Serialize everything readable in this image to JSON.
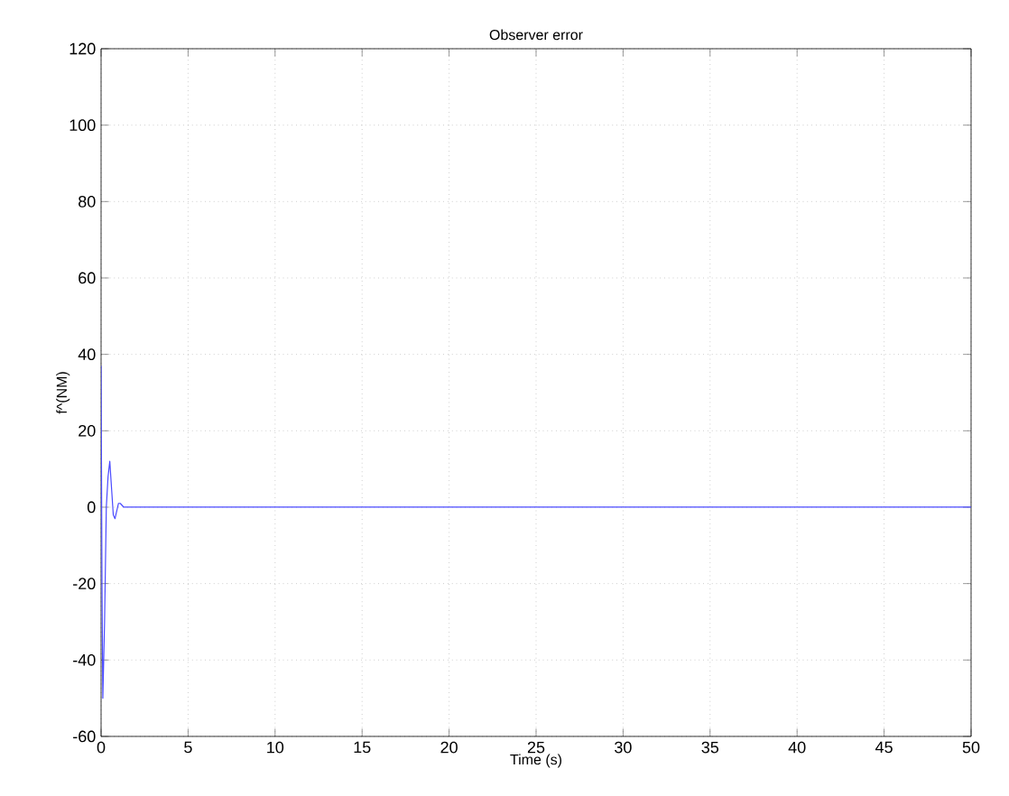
{
  "chart_data": {
    "type": "line",
    "title": "Observer error",
    "xlabel": "Time (s)",
    "ylabel": "f^(NM)",
    "x": [
      0,
      0.05,
      0.1,
      0.2,
      0.3,
      0.4,
      0.5,
      0.6,
      0.7,
      0.8,
      0.9,
      1.0,
      1.1,
      1.3,
      1.5,
      50
    ],
    "series": [
      {
        "color": "#4a4aff",
        "values": [
          37,
          -20,
          -50,
          -30,
          0,
          8,
          12,
          5,
          -2,
          -3,
          -1,
          1,
          1,
          0,
          0,
          0
        ]
      }
    ],
    "xlim": [
      0,
      50
    ],
    "ylim": [
      -60,
      120
    ],
    "xticks": [
      0,
      5,
      10,
      15,
      20,
      25,
      30,
      35,
      40,
      45,
      50
    ],
    "yticks": [
      -60,
      -40,
      -20,
      0,
      20,
      40,
      60,
      80,
      100,
      120
    ],
    "grid": true,
    "line_style": "solid",
    "marker": "none"
  }
}
